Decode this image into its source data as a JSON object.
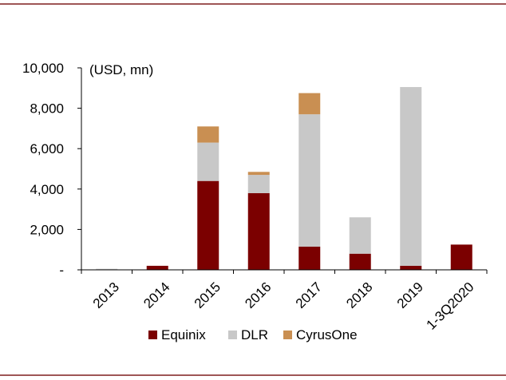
{
  "colors": {
    "frame_rule": "#7f1d1d",
    "axis": "#000000"
  },
  "chart_data": {
    "type": "bar",
    "stacked": true,
    "unit_label": "(USD, mn)",
    "categories": [
      "2013",
      "2014",
      "2015",
      "2016",
      "2017",
      "2018",
      "2019",
      "1-3Q2020"
    ],
    "ylim": [
      0,
      10000
    ],
    "yticks": [
      0,
      2000,
      4000,
      6000,
      8000,
      10000
    ],
    "ytick_labels": [
      "-",
      "2,000",
      "4,000",
      "6,000",
      "8,000",
      "10,000"
    ],
    "series": [
      {
        "name": "Equinix",
        "color": "#7b0000",
        "values": [
          20,
          200,
          4400,
          3800,
          1150,
          800,
          200,
          1250
        ]
      },
      {
        "name": "DLR",
        "color": "#c8c8c8",
        "values": [
          30,
          0,
          1900,
          900,
          6550,
          1800,
          8850,
          0
        ]
      },
      {
        "name": "CyrusOne",
        "color": "#c98f52",
        "values": [
          0,
          0,
          800,
          150,
          1050,
          0,
          0,
          0
        ]
      }
    ],
    "grid": false,
    "legend_position": "bottom"
  }
}
